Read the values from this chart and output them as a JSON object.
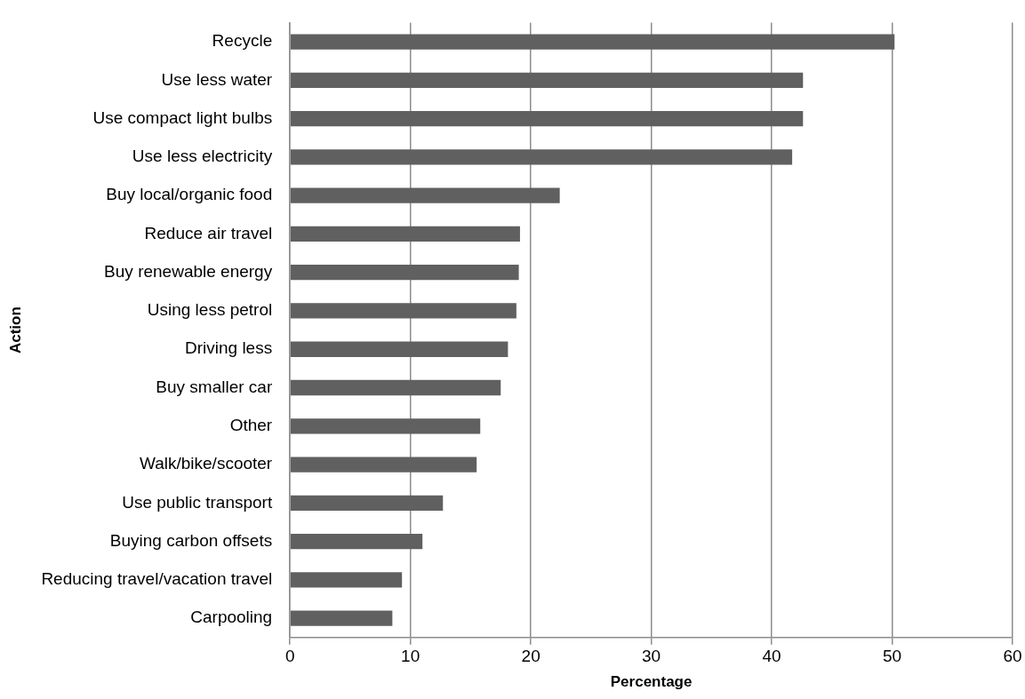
{
  "chart_data": {
    "type": "bar",
    "orientation": "horizontal",
    "xlabel": "Percentage",
    "ylabel": "Action",
    "categories": [
      "Recycle",
      "Use less water",
      "Use compact light bulbs",
      "Use less electricity",
      "Buy local/organic food",
      "Reduce air travel",
      "Buy renewable energy",
      "Using less petrol",
      "Driving less",
      "Buy smaller car",
      "Other",
      "Walk/bike/scooter",
      "Use public transport",
      "Buying carbon offsets",
      "Reducing travel/vacation travel",
      "Carpooling"
    ],
    "values": [
      50.2,
      42.6,
      42.6,
      41.7,
      22.4,
      19.1,
      19.0,
      18.8,
      18.1,
      17.5,
      15.8,
      15.5,
      12.7,
      11.0,
      9.3,
      8.5
    ],
    "color": "#606060",
    "xlim": [
      0,
      60
    ],
    "xticks": [
      0,
      10,
      20,
      30,
      40,
      50,
      60
    ],
    "grid": "x",
    "legend": false
  }
}
